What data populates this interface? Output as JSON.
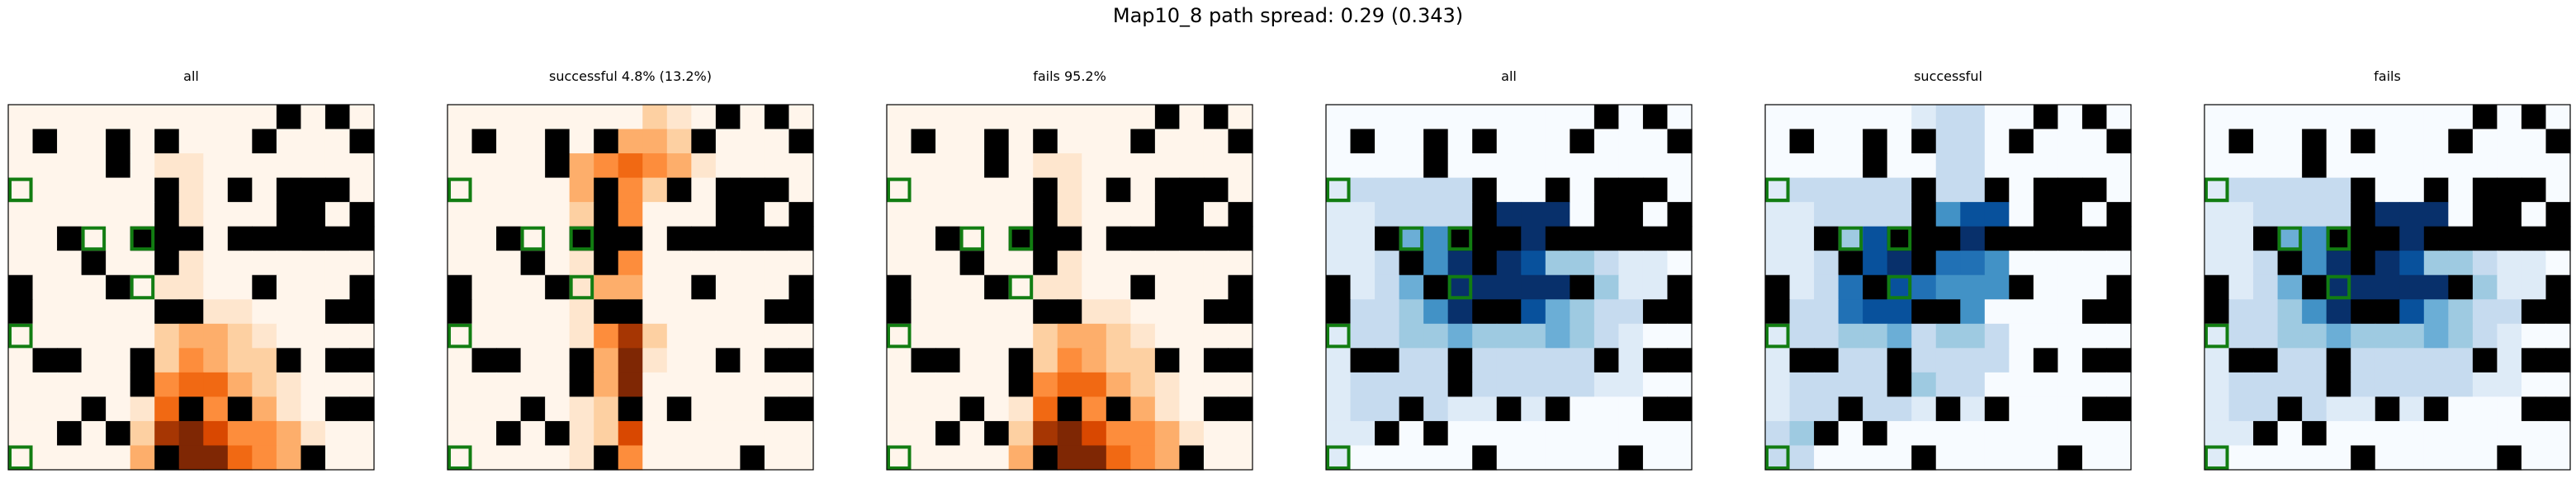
{
  "suptitle": "Map10_8 path spread: 0.29 (0.343)",
  "colors": {
    "wall": "#000000",
    "highlight": "#127d12",
    "orange_cmap": [
      "#fff5eb",
      "#fee6ce",
      "#fdd0a2",
      "#fdae6b",
      "#fd8d3c",
      "#f16913",
      "#d94801",
      "#a63603",
      "#7f2704"
    ],
    "blue_cmap": [
      "#f7fbff",
      "#deebf7",
      "#c6dbef",
      "#9ecae1",
      "#6baed6",
      "#4292c6",
      "#2171b5",
      "#08519c",
      "#08306b"
    ]
  },
  "chart_data": {
    "type": "heatmap",
    "grid_size": 15,
    "walls": [
      "000000000001010",
      "010010100010001",
      "000010077000000",
      "000000100101110",
      "000000100001101",
      "001001110111111",
      "000100100000000",
      "100010000010001",
      "100000110000011",
      "000000000000000",
      "011001000001011",
      "000001000000000",
      "000100010100011",
      "001010000000000",
      "000000100000100"
    ],
    "highlight_cells": [
      [
        0,
        14
      ],
      [
        0,
        9
      ],
      [
        0,
        3
      ],
      [
        5,
        5
      ],
      [
        3,
        5
      ],
      [
        5,
        7
      ],
      [
        0,
        3
      ]
    ],
    "panels": [
      {
        "title": "all",
        "cmap": "orange",
        "values": [
          "000000000000000",
          "000000000000000",
          "000000110000000",
          "000000110000000",
          "000000110000000",
          "000000110000000",
          "000000110000000",
          "000000110000000",
          "000000111100000",
          "000000233210000",
          "000000243221000",
          "000001455321000",
          "000001564331000",
          "000002786443100",
          "000003998543100"
        ]
      },
      {
        "title": "successful 4.8% (13.2%)",
        "cmap": "orange",
        "values": [
          "000000002100000",
          "000000333210000",
          "000003454310000",
          "000003442200000",
          "000002440000000",
          "000001240000000",
          "000001340000000",
          "000001330000000",
          "000001460000000",
          "000001472000000",
          "000001381000000",
          "000001390000000",
          "000001280000000",
          "000001260000000",
          "000001240000000"
        ]
      },
      {
        "title": "fails 95.2%",
        "cmap": "orange",
        "values": [
          "000000000000000",
          "000000000000000",
          "000000110000000",
          "000000110000000",
          "000000110000000",
          "000000110000000",
          "000000110000000",
          "000000110000000",
          "000000111100000",
          "000000233210000",
          "000000243221000",
          "000001455321000",
          "000001564331000",
          "000002786443100",
          "000003998543100"
        ]
      },
      {
        "title": "all",
        "cmap": "blue",
        "values": [
          "000000000000000",
          "000000000000000",
          "000000000000000",
          "122222200000000",
          "112222888800000",
          "112458888322110",
          "112458887332110",
          "112458888833110",
          "122358887432210",
          "122334333432100",
          "122222222221100",
          "122222222221100",
          "122221111000000",
          "110000000000000",
          "100000000000000"
        ]
      },
      {
        "title": "successful",
        "cmap": "blue",
        "values": [
          "000000122000000",
          "000000022000000",
          "000000022000000",
          "122222322000000",
          "112222557700000",
          "112378888500000",
          "112478766500000",
          "112677655500000",
          "122677655000000",
          "122334233200000",
          "122222222200000",
          "122223322000000",
          "122222111000000",
          "230000000000000",
          "220000000000000"
        ]
      },
      {
        "title": "fails",
        "cmap": "blue",
        "values": [
          "000000000000000",
          "000000000000000",
          "000000000000000",
          "122222200000000",
          "112222888800000",
          "112458888322110",
          "112458887332110",
          "112458888833110",
          "122358887432210",
          "122334333432100",
          "122222222221100",
          "122222222221100",
          "122221111000000",
          "110000000000000",
          "100000000000000"
        ]
      }
    ]
  }
}
